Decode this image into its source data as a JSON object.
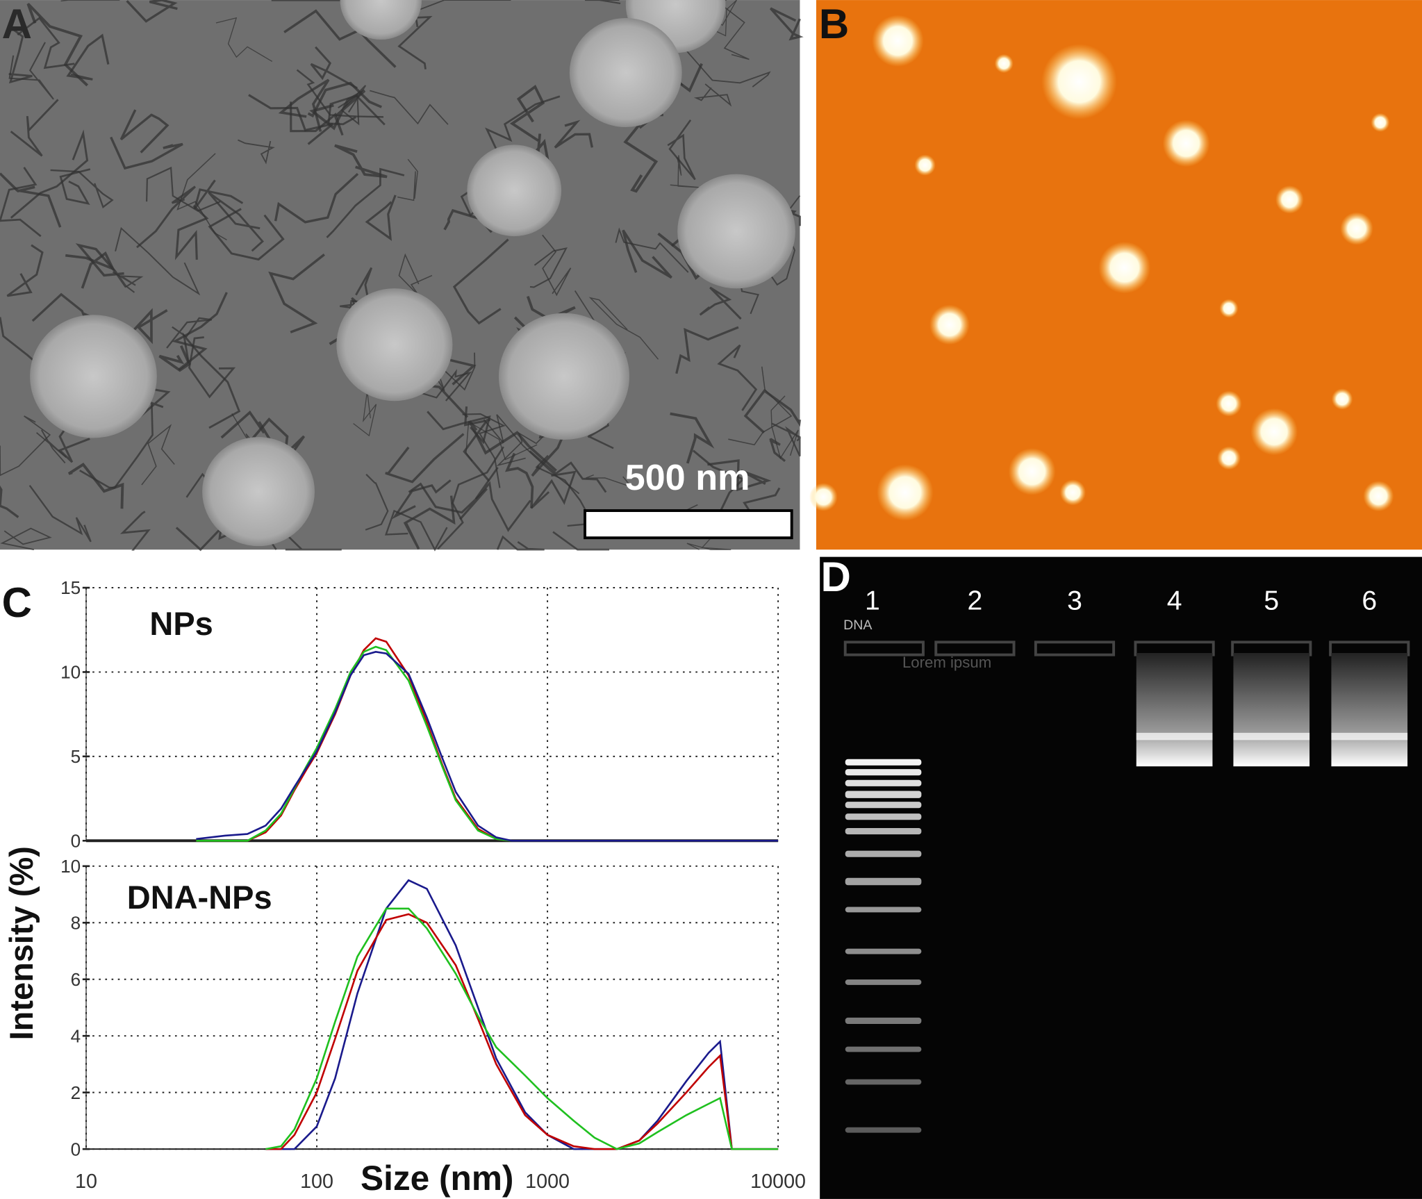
{
  "panels": {
    "a": {
      "label": "A",
      "scale_bar": "500 nm"
    },
    "b": {
      "label": "B"
    },
    "c": {
      "label": "C",
      "ylabel": "Intensity (%)",
      "xlabel": "Size (nm)"
    },
    "d": {
      "label": "D",
      "lanes": [
        "1",
        "2",
        "3",
        "4",
        "5",
        "6"
      ],
      "annotations": [
        "DNA",
        "Lorem ipsum"
      ]
    }
  },
  "chart_data": [
    {
      "type": "line",
      "title": "NPs",
      "xscale": "log",
      "grid": true,
      "xlim": [
        10,
        10000
      ],
      "xticks": [
        10,
        100,
        1000,
        10000
      ],
      "ylim": [
        0,
        15
      ],
      "yticks": [
        0,
        5,
        10,
        15
      ],
      "x": [
        30,
        40,
        50,
        60,
        70,
        80,
        90,
        100,
        120,
        140,
        160,
        180,
        200,
        250,
        300,
        350,
        400,
        500,
        600,
        700,
        1000,
        3000,
        10000
      ],
      "series": [
        {
          "color": "#c00000",
          "values": [
            0,
            0,
            0,
            0.5,
            1.5,
            3,
            4.2,
            5.2,
            7.5,
            9.8,
            11.3,
            12,
            11.8,
            9.8,
            7,
            4.5,
            2.5,
            0.7,
            0.1,
            0,
            0,
            0,
            0
          ]
        },
        {
          "color": "#1fc01f",
          "values": [
            0,
            0,
            0,
            0.6,
            1.6,
            3.1,
            4.4,
            5.5,
            7.8,
            10,
            11.2,
            11.5,
            11.3,
            9.5,
            6.8,
            4.4,
            2.4,
            0.6,
            0.1,
            0,
            0,
            0,
            0
          ]
        },
        {
          "color": "#1a1a8c",
          "values": [
            0.1,
            0.3,
            0.4,
            0.9,
            1.9,
            3.2,
            4.3,
            5.3,
            7.6,
            9.8,
            11,
            11.2,
            11.1,
            9.9,
            7.3,
            4.9,
            2.9,
            0.9,
            0.2,
            0,
            0,
            0,
            0
          ]
        }
      ]
    },
    {
      "type": "line",
      "title": "DNA-NPs",
      "xscale": "log",
      "grid": true,
      "xlim": [
        10,
        10000
      ],
      "xticks": [
        10,
        100,
        1000,
        10000
      ],
      "ylim": [
        0,
        10
      ],
      "yticks": [
        0,
        2,
        4,
        6,
        8,
        10
      ],
      "x": [
        60,
        70,
        80,
        100,
        120,
        150,
        200,
        250,
        300,
        400,
        500,
        600,
        800,
        1000,
        1300,
        1600,
        2000,
        2500,
        3000,
        4000,
        5000,
        5600,
        6300,
        10000
      ],
      "series": [
        {
          "color": "#1a1a8c",
          "values": [
            0,
            0,
            0,
            0.8,
            2.5,
            5.5,
            8.5,
            9.5,
            9.2,
            7.2,
            5,
            3.2,
            1.3,
            0.5,
            0,
            0,
            0,
            0.3,
            1,
            2.4,
            3.4,
            3.8,
            0,
            0
          ]
        },
        {
          "color": "#c00000",
          "values": [
            0,
            0,
            0.5,
            2,
            3.9,
            6.3,
            8.1,
            8.3,
            8,
            6.5,
            4.6,
            3,
            1.2,
            0.5,
            0.1,
            0,
            0,
            0.3,
            0.9,
            2,
            2.9,
            3.3,
            0,
            0
          ]
        },
        {
          "color": "#1fc01f",
          "values": [
            0,
            0.1,
            0.7,
            2.5,
            4.5,
            6.8,
            8.5,
            8.5,
            7.8,
            6.2,
            4.7,
            3.6,
            2.6,
            1.8,
            1,
            0.4,
            0,
            0.2,
            0.6,
            1.2,
            1.6,
            1.8,
            0,
            0
          ]
        }
      ]
    }
  ]
}
